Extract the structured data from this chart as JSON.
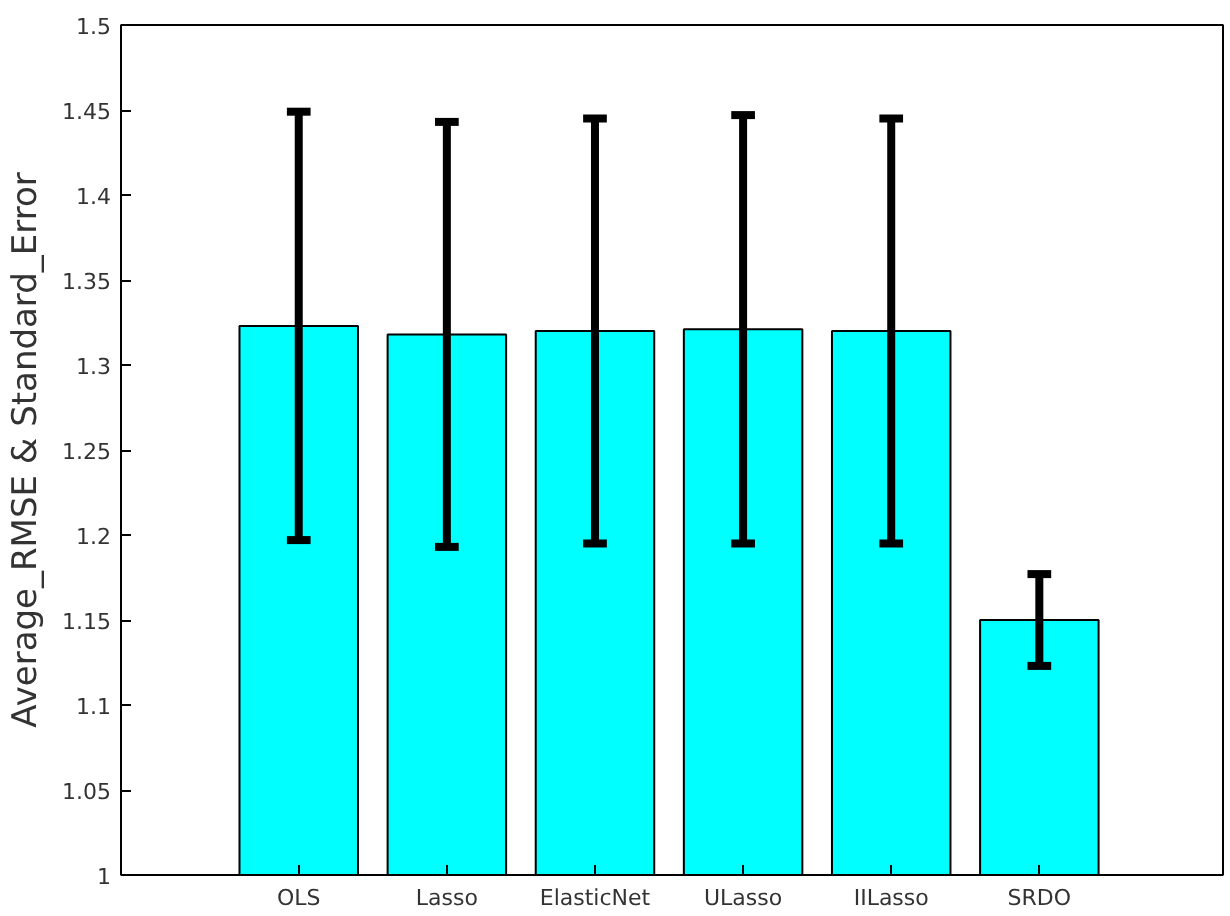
{
  "chart_data": {
    "type": "bar",
    "ylabel": "Average_RMSE & Standard_Error",
    "categories": [
      "OLS",
      "Lasso",
      "ElasticNet",
      "ULasso",
      "IILasso",
      "SRDO"
    ],
    "values": [
      1.323,
      1.318,
      1.32,
      1.321,
      1.32,
      1.15
    ],
    "errors": [
      0.126,
      0.125,
      0.125,
      0.126,
      0.125,
      0.027
    ],
    "color": "#00ffff",
    "ylim": [
      1,
      1.5
    ],
    "yticks": [
      1,
      1.05,
      1.1,
      1.15,
      1.2,
      1.25,
      1.3,
      1.35,
      1.4,
      1.45,
      1.5
    ],
    "grid": false
  }
}
